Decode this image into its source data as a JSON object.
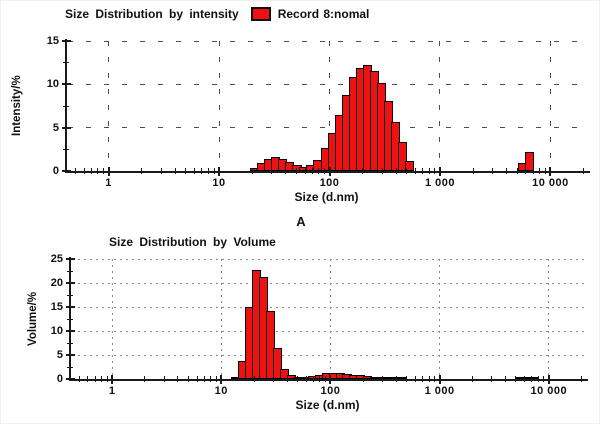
{
  "panel_label": "A",
  "chart_data": [
    {
      "type": "bar",
      "title": "Size Distribution by intensity",
      "legend": "Record 8:nomal",
      "legend_swatch_color": "#ee1111",
      "xlabel": "Size (d.nm)",
      "ylabel": "Intensity/%",
      "x_scale": "log",
      "x_range": [
        0.42,
        21000
      ],
      "x_tick_values": [
        1,
        10,
        100,
        1000,
        10000
      ],
      "x_tick_labels": [
        "1",
        "10",
        "100",
        "1 000",
        "10 000"
      ],
      "y_ticks": [
        0,
        5,
        10,
        15
      ],
      "ylim": [
        0,
        15
      ],
      "grid_style": "dashed",
      "grid_on": true,
      "legend_position": "top",
      "bar_color": "#ee1111",
      "bins_per_decade": 12,
      "bars": [
        [
          21.0,
          0.4
        ],
        [
          24.4,
          0.9
        ],
        [
          28.2,
          1.4
        ],
        [
          32.7,
          1.6
        ],
        [
          37.8,
          1.4
        ],
        [
          43.8,
          1.0
        ],
        [
          50.7,
          0.7
        ],
        [
          58.8,
          0.5
        ],
        [
          68.1,
          0.7
        ],
        [
          78.8,
          1.3
        ],
        [
          91.3,
          2.6
        ],
        [
          105.7,
          4.4
        ],
        [
          122.4,
          6.5
        ],
        [
          141.8,
          8.8
        ],
        [
          164.2,
          10.8
        ],
        [
          190.1,
          11.9
        ],
        [
          220.2,
          12.2
        ],
        [
          255.0,
          11.5
        ],
        [
          295.3,
          10.2
        ],
        [
          342.0,
          8.1
        ],
        [
          396.1,
          5.6
        ],
        [
          458.7,
          3.3
        ],
        [
          531.2,
          1.2
        ],
        [
          5560,
          0.9
        ],
        [
          6439,
          2.2
        ]
      ]
    },
    {
      "type": "bar",
      "title": "Size Distribution by Volume",
      "xlabel": "Size (d.nm)",
      "ylabel": "Volume/%",
      "x_scale": "log",
      "x_range": [
        0.42,
        21000
      ],
      "x_tick_values": [
        1,
        10,
        100,
        1000,
        10000
      ],
      "x_tick_labels": [
        "1",
        "10",
        "100",
        "1 000",
        "10 000"
      ],
      "y_ticks": [
        0,
        5,
        10,
        15,
        20,
        25
      ],
      "ylim": [
        0,
        25
      ],
      "grid_style": "dotted",
      "grid_on": true,
      "bar_color": "#ee1111",
      "bins_per_decade": 12,
      "bars": [
        [
          13.5,
          0.3
        ],
        [
          15.7,
          3.8
        ],
        [
          18.2,
          15.0
        ],
        [
          21.0,
          22.8
        ],
        [
          24.4,
          21.3
        ],
        [
          28.2,
          14.2
        ],
        [
          32.7,
          6.4
        ],
        [
          37.8,
          2.1
        ],
        [
          43.8,
          0.8
        ],
        [
          50.7,
          0.4
        ],
        [
          58.8,
          0.4
        ],
        [
          68.1,
          0.6
        ],
        [
          78.8,
          0.9
        ],
        [
          91.3,
          1.2
        ],
        [
          105.7,
          1.3
        ],
        [
          122.4,
          1.2
        ],
        [
          141.8,
          1.1
        ],
        [
          164.2,
          0.9
        ],
        [
          190.1,
          0.8
        ],
        [
          220.2,
          0.6
        ],
        [
          255.0,
          0.5
        ],
        [
          295.3,
          0.4
        ],
        [
          342.0,
          0.3
        ],
        [
          396.1,
          0.2
        ],
        [
          458.7,
          0.15
        ],
        [
          5560,
          0.2
        ],
        [
          6439,
          0.35
        ],
        [
          7456,
          0.2
        ]
      ]
    }
  ]
}
